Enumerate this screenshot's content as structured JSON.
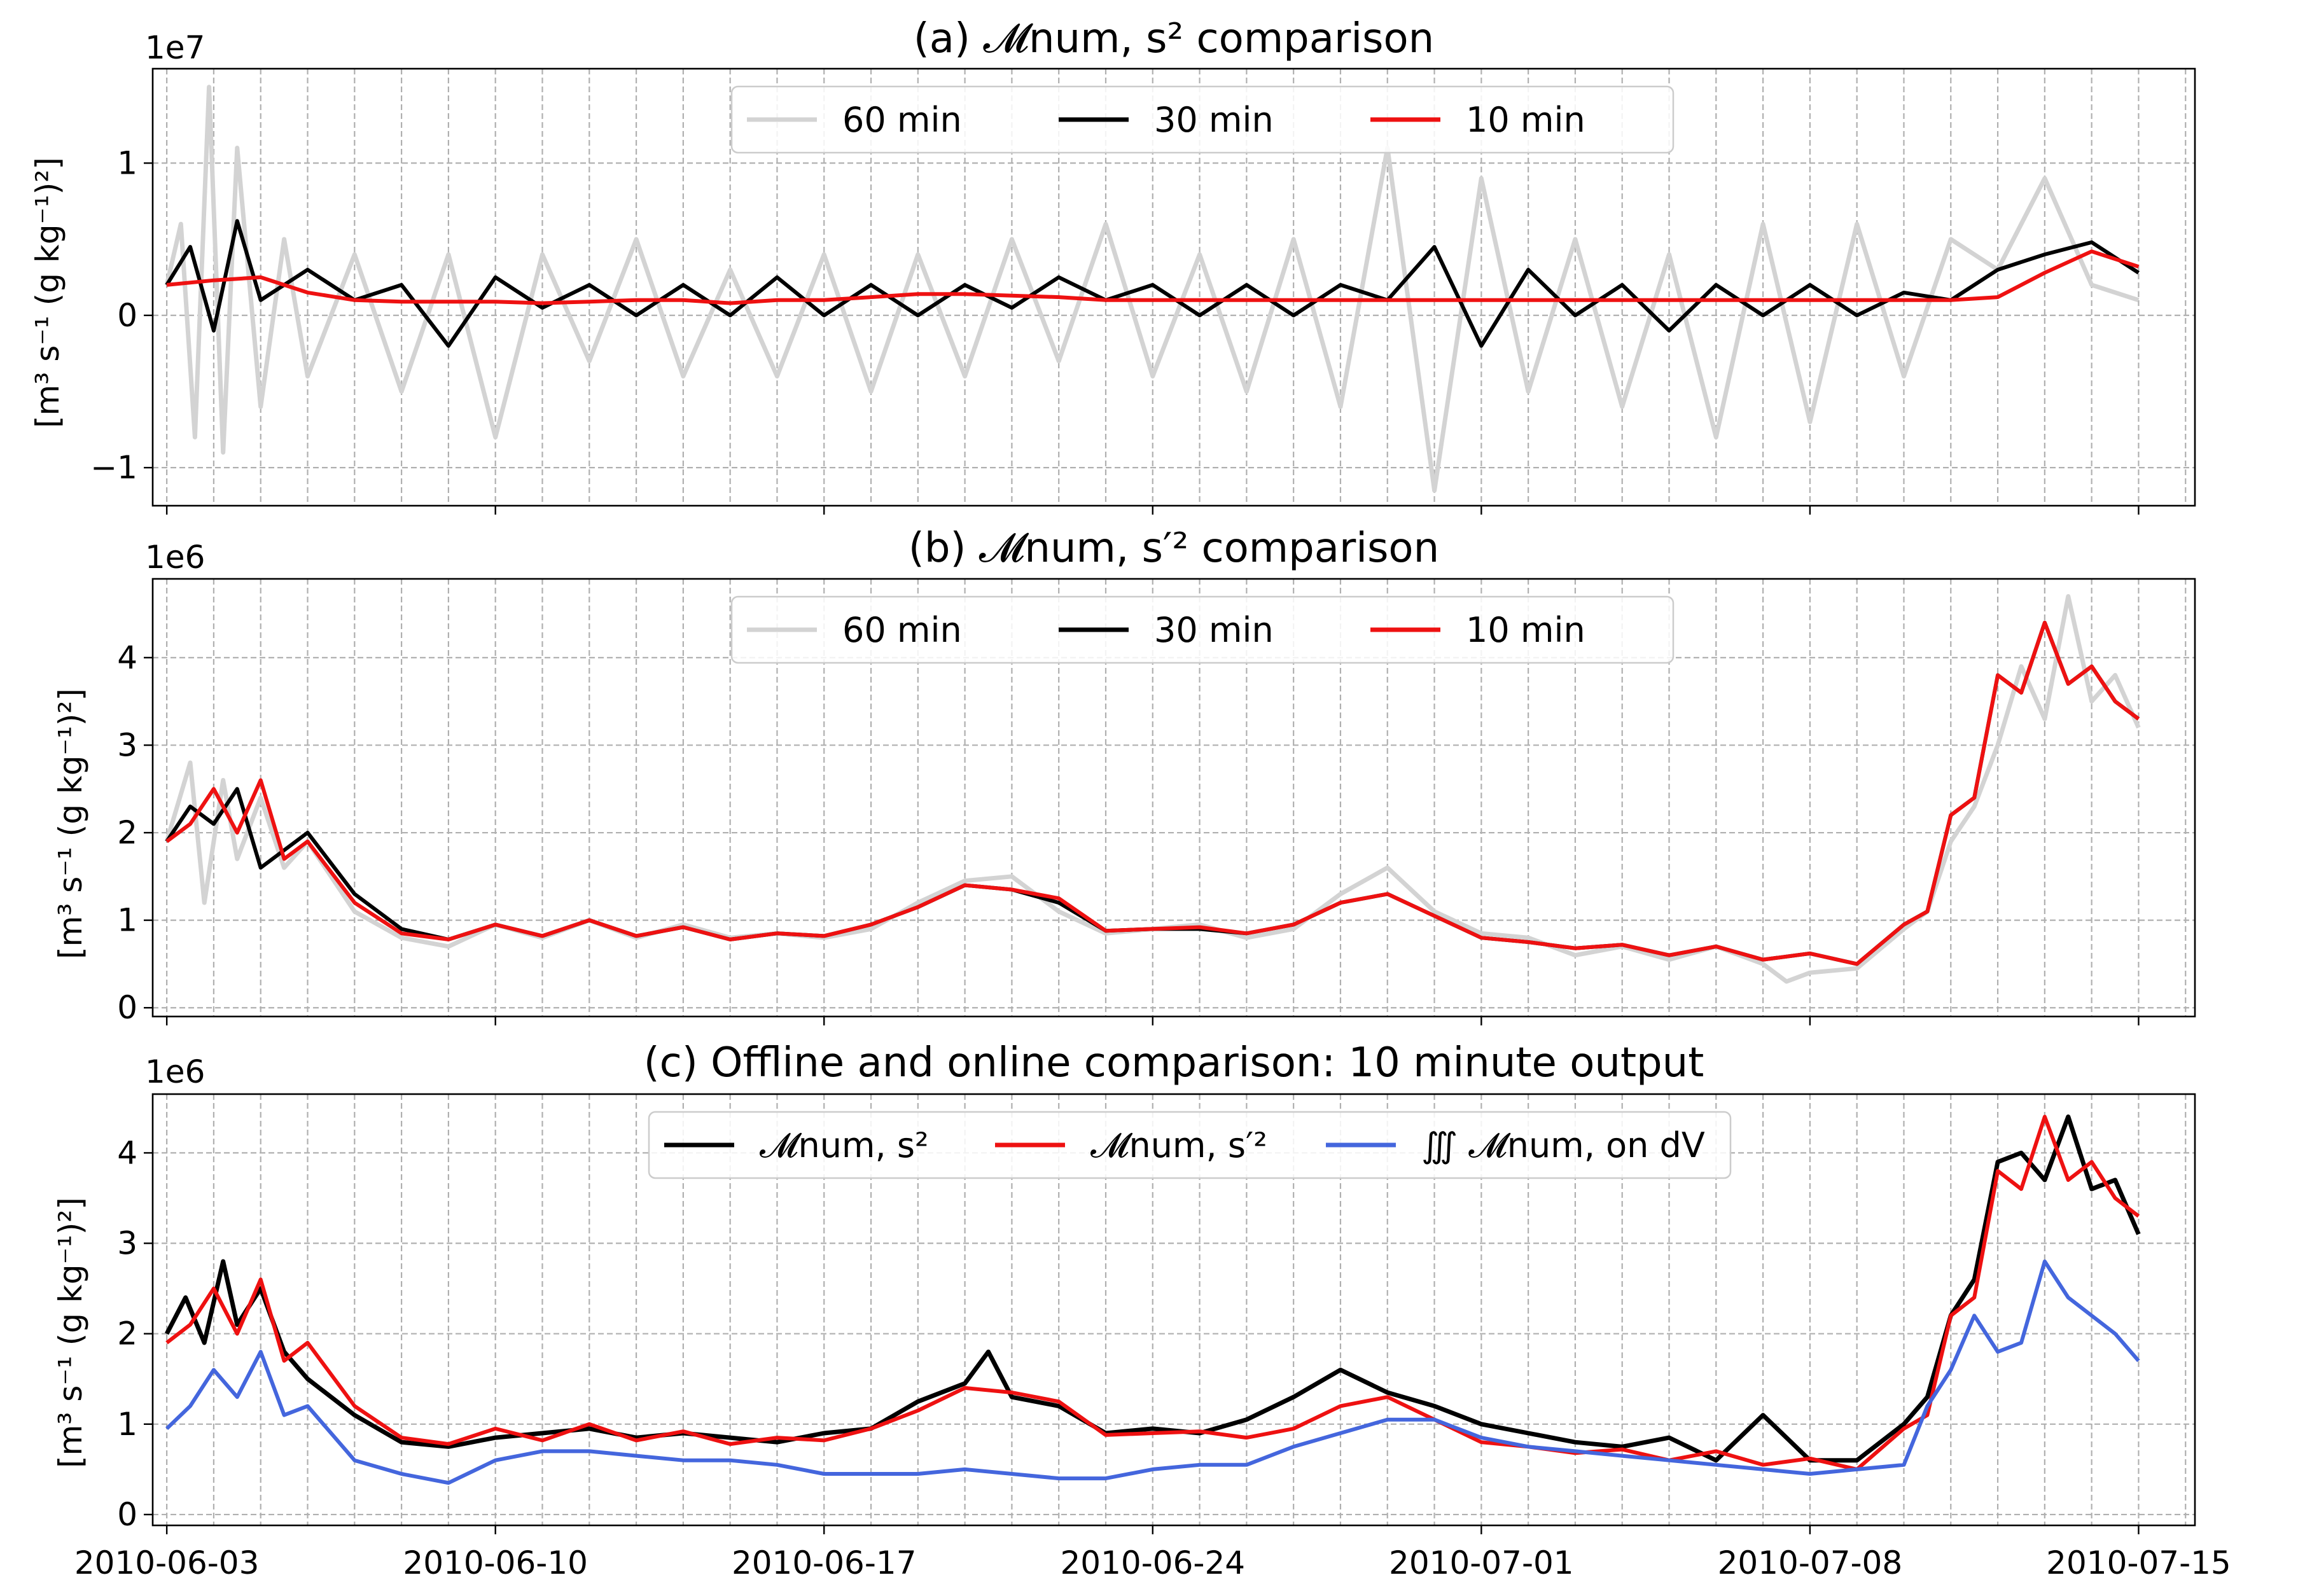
{
  "chart_data": [
    {
      "type": "line",
      "title": "(a) 𝓜num, s² comparison",
      "ylabel": "[m³ s⁻¹ (g kg⁻¹)²]",
      "offset_text": "1e7",
      "ylim": [
        -1.25,
        1.62
      ],
      "yticks": [
        -1,
        0,
        1
      ],
      "ytick_labels": [
        "−1",
        "0",
        "1"
      ],
      "grid": true,
      "legend": "top-center",
      "series": [
        {
          "name": "60 min",
          "color": "#d3d3d3",
          "x": [
            0,
            0.3,
            0.6,
            0.9,
            1.2,
            1.5,
            2,
            2.5,
            3,
            4,
            5,
            6,
            7,
            8,
            9,
            10,
            11,
            12,
            13,
            14,
            15,
            16,
            17,
            18,
            19,
            20,
            21,
            22,
            23,
            24,
            25,
            26,
            27,
            28,
            29,
            30,
            31,
            32,
            33,
            34,
            35,
            36,
            37,
            38,
            39,
            40,
            41,
            42
          ],
          "y": [
            0.2,
            0.6,
            -0.8,
            1.5,
            -0.9,
            1.1,
            -0.6,
            0.5,
            -0.4,
            0.4,
            -0.5,
            0.4,
            -0.8,
            0.4,
            -0.3,
            0.5,
            -0.4,
            0.3,
            -0.4,
            0.4,
            -0.5,
            0.4,
            -0.4,
            0.5,
            -0.3,
            0.6,
            -0.4,
            0.4,
            -0.5,
            0.5,
            -0.6,
            1.1,
            -1.15,
            0.9,
            -0.5,
            0.5,
            -0.6,
            0.4,
            -0.8,
            0.6,
            -0.7,
            0.6,
            -0.4,
            0.5,
            0.3,
            0.9,
            0.2,
            0.1
          ]
        },
        {
          "name": "30 min",
          "color": "#000000",
          "x": [
            0,
            0.5,
            1,
            1.5,
            2,
            3,
            4,
            5,
            6,
            7,
            8,
            9,
            10,
            11,
            12,
            13,
            14,
            15,
            16,
            17,
            18,
            19,
            20,
            21,
            22,
            23,
            24,
            25,
            26,
            27,
            28,
            29,
            30,
            31,
            32,
            33,
            34,
            35,
            36,
            37,
            38,
            39,
            40,
            41,
            42
          ],
          "y": [
            0.2,
            0.45,
            -0.1,
            0.62,
            0.1,
            0.3,
            0.1,
            0.2,
            -0.2,
            0.25,
            0.05,
            0.2,
            0.0,
            0.2,
            0.0,
            0.25,
            0.0,
            0.2,
            0.0,
            0.2,
            0.05,
            0.25,
            0.1,
            0.2,
            0.0,
            0.2,
            0.0,
            0.2,
            0.1,
            0.45,
            -0.2,
            0.3,
            0.0,
            0.2,
            -0.1,
            0.2,
            0.0,
            0.2,
            0.0,
            0.15,
            0.1,
            0.3,
            0.4,
            0.48,
            0.28
          ]
        },
        {
          "name": "10 min",
          "color": "#ee1111",
          "x": [
            0,
            1,
            2,
            3,
            4,
            5,
            6,
            7,
            8,
            9,
            10,
            11,
            12,
            13,
            14,
            15,
            16,
            17,
            18,
            19,
            20,
            21,
            22,
            23,
            24,
            25,
            26,
            27,
            28,
            29,
            30,
            31,
            32,
            33,
            34,
            35,
            36,
            37,
            38,
            39,
            40,
            41,
            42
          ],
          "y": [
            0.2,
            0.23,
            0.25,
            0.15,
            0.1,
            0.09,
            0.09,
            0.09,
            0.08,
            0.09,
            0.1,
            0.1,
            0.08,
            0.1,
            0.1,
            0.12,
            0.14,
            0.14,
            0.13,
            0.12,
            0.1,
            0.1,
            0.1,
            0.1,
            0.1,
            0.1,
            0.1,
            0.1,
            0.1,
            0.1,
            0.1,
            0.1,
            0.1,
            0.1,
            0.1,
            0.1,
            0.1,
            0.1,
            0.1,
            0.12,
            0.28,
            0.42,
            0.32
          ]
        }
      ]
    },
    {
      "type": "line",
      "title": "(b) 𝓜num, s′² comparison",
      "ylabel": "[m³ s⁻¹ (g kg⁻¹)²]",
      "offset_text": "1e6",
      "ylim": [
        -0.1,
        4.9
      ],
      "yticks": [
        0,
        1,
        2,
        3,
        4
      ],
      "ytick_labels": [
        "0",
        "1",
        "2",
        "3",
        "4"
      ],
      "grid": true,
      "legend": "top-center",
      "series": [
        {
          "name": "60 min",
          "color": "#d3d3d3",
          "x": [
            0,
            0.5,
            0.8,
            1.2,
            1.5,
            2,
            2.5,
            3,
            4,
            5,
            6,
            7,
            8,
            9,
            10,
            11,
            12,
            13,
            14,
            15,
            16,
            17,
            18,
            19,
            20,
            21,
            22,
            23,
            24,
            25,
            26,
            27,
            28,
            29,
            30,
            31,
            32,
            33,
            34,
            34.5,
            35,
            36,
            37,
            37.5,
            38,
            38.5,
            39,
            39.5,
            40,
            40.5,
            41,
            41.5,
            42
          ],
          "y": [
            1.9,
            2.8,
            1.2,
            2.6,
            1.7,
            2.4,
            1.6,
            1.9,
            1.1,
            0.8,
            0.7,
            0.95,
            0.8,
            1.0,
            0.8,
            0.95,
            0.8,
            0.85,
            0.8,
            0.9,
            1.2,
            1.45,
            1.5,
            1.1,
            0.85,
            0.9,
            0.95,
            0.8,
            0.9,
            1.3,
            1.6,
            1.1,
            0.85,
            0.8,
            0.6,
            0.7,
            0.55,
            0.7,
            0.5,
            0.3,
            0.4,
            0.45,
            0.9,
            1.1,
            1.9,
            2.3,
            3.0,
            3.9,
            3.3,
            4.7,
            3.5,
            3.8,
            3.2
          ]
        },
        {
          "name": "30 min",
          "color": "#000000",
          "x": [
            0,
            0.5,
            1,
            1.5,
            2,
            3,
            4,
            5,
            6,
            7,
            8,
            9,
            10,
            11,
            12,
            13,
            14,
            15,
            16,
            17,
            18,
            19,
            20,
            21,
            22,
            23,
            24,
            25,
            26,
            27,
            28,
            29,
            30,
            31,
            32,
            33,
            34,
            35,
            36,
            37,
            37.5,
            38,
            38.5,
            39,
            39.5,
            40,
            40.5,
            41,
            41.5,
            42
          ],
          "y": [
            1.9,
            2.3,
            2.1,
            2.5,
            1.6,
            2.0,
            1.3,
            0.9,
            0.78,
            0.95,
            0.82,
            1.0,
            0.82,
            0.92,
            0.78,
            0.85,
            0.82,
            0.95,
            1.15,
            1.4,
            1.35,
            1.2,
            0.88,
            0.9,
            0.9,
            0.85,
            0.95,
            1.2,
            1.3,
            1.05,
            0.8,
            0.75,
            0.68,
            0.72,
            0.6,
            0.7,
            0.55,
            0.62,
            0.5,
            0.95,
            1.1,
            2.2,
            2.4,
            3.8,
            3.6,
            4.4,
            3.7,
            3.9,
            3.5,
            3.3
          ]
        },
        {
          "name": "10 min",
          "color": "#ee1111",
          "x": [
            0,
            0.5,
            1,
            1.5,
            2,
            2.5,
            3,
            4,
            5,
            6,
            7,
            8,
            9,
            10,
            11,
            12,
            13,
            14,
            15,
            16,
            17,
            18,
            19,
            20,
            21,
            22,
            23,
            24,
            25,
            26,
            27,
            28,
            29,
            30,
            31,
            32,
            33,
            34,
            35,
            36,
            37,
            37.5,
            38,
            38.5,
            39,
            39.5,
            40,
            40.5,
            41,
            41.5,
            42
          ],
          "y": [
            1.9,
            2.1,
            2.5,
            2.0,
            2.6,
            1.7,
            1.9,
            1.2,
            0.85,
            0.78,
            0.95,
            0.82,
            1.0,
            0.82,
            0.92,
            0.78,
            0.85,
            0.82,
            0.95,
            1.15,
            1.4,
            1.35,
            1.25,
            0.88,
            0.9,
            0.92,
            0.85,
            0.95,
            1.2,
            1.3,
            1.05,
            0.8,
            0.75,
            0.68,
            0.72,
            0.6,
            0.7,
            0.55,
            0.62,
            0.5,
            0.95,
            1.1,
            2.2,
            2.4,
            3.8,
            3.6,
            4.4,
            3.7,
            3.9,
            3.5,
            3.3
          ]
        }
      ]
    },
    {
      "type": "line",
      "title": "(c) Offline and online comparison: 10 minute output",
      "ylabel": "[m³ s⁻¹ (g kg⁻¹)²]",
      "offset_text": "1e6",
      "ylim": [
        -0.12,
        4.65
      ],
      "yticks": [
        0,
        1,
        2,
        3,
        4
      ],
      "ytick_labels": [
        "0",
        "1",
        "2",
        "3",
        "4"
      ],
      "grid": true,
      "legend": "top-center",
      "xlim": [
        -0.3,
        43.2
      ],
      "xticks": [
        0,
        7,
        14,
        21,
        28,
        35,
        42
      ],
      "xtick_labels": [
        "2010-06-03",
        "2010-06-10",
        "2010-06-17",
        "2010-06-24",
        "2010-07-01",
        "2010-07-08",
        "2010-07-15"
      ],
      "series": [
        {
          "name": "𝓜num, s²",
          "color": "#000000",
          "x": [
            0,
            0.4,
            0.8,
            1.2,
            1.5,
            2,
            2.5,
            3,
            4,
            5,
            6,
            7,
            8,
            9,
            10,
            11,
            12,
            13,
            14,
            15,
            16,
            17,
            17.5,
            18,
            19,
            20,
            21,
            22,
            23,
            24,
            25,
            26,
            27,
            28,
            29,
            30,
            31,
            32,
            33,
            34,
            35,
            36,
            37,
            37.5,
            38,
            38.5,
            39,
            39.5,
            40,
            40.5,
            41,
            41.5,
            42
          ],
          "y": [
            2.0,
            2.4,
            1.9,
            2.8,
            2.1,
            2.5,
            1.8,
            1.5,
            1.1,
            0.8,
            0.75,
            0.85,
            0.9,
            0.95,
            0.85,
            0.9,
            0.85,
            0.8,
            0.9,
            0.95,
            1.25,
            1.45,
            1.8,
            1.3,
            1.2,
            0.9,
            0.95,
            0.9,
            1.05,
            1.3,
            1.6,
            1.35,
            1.2,
            1.0,
            0.9,
            0.8,
            0.75,
            0.85,
            0.6,
            1.1,
            0.6,
            0.6,
            1.0,
            1.3,
            2.2,
            2.6,
            3.9,
            4.0,
            3.7,
            4.4,
            3.6,
            3.7,
            3.1
          ]
        },
        {
          "name": "𝓜num, s′²",
          "color": "#ee1111",
          "x": [
            0,
            0.5,
            1,
            1.5,
            2,
            2.5,
            3,
            4,
            5,
            6,
            7,
            8,
            9,
            10,
            11,
            12,
            13,
            14,
            15,
            16,
            17,
            18,
            19,
            20,
            21,
            22,
            23,
            24,
            25,
            26,
            27,
            28,
            29,
            30,
            31,
            32,
            33,
            34,
            35,
            36,
            37,
            37.5,
            38,
            38.5,
            39,
            39.5,
            40,
            40.5,
            41,
            41.5,
            42
          ],
          "y": [
            1.9,
            2.1,
            2.5,
            2.0,
            2.6,
            1.7,
            1.9,
            1.2,
            0.85,
            0.78,
            0.95,
            0.82,
            1.0,
            0.82,
            0.92,
            0.78,
            0.85,
            0.82,
            0.95,
            1.15,
            1.4,
            1.35,
            1.25,
            0.88,
            0.9,
            0.92,
            0.85,
            0.95,
            1.2,
            1.3,
            1.05,
            0.8,
            0.75,
            0.68,
            0.72,
            0.6,
            0.7,
            0.55,
            0.62,
            0.5,
            0.95,
            1.1,
            2.2,
            2.4,
            3.8,
            3.6,
            4.4,
            3.7,
            3.9,
            3.5,
            3.3
          ]
        },
        {
          "name": "∭ 𝓜num, on dV",
          "color": "#4466dd",
          "x": [
            0,
            0.5,
            1,
            1.5,
            2,
            2.5,
            3,
            4,
            5,
            6,
            7,
            8,
            9,
            10,
            11,
            12,
            13,
            14,
            15,
            16,
            17,
            18,
            19,
            20,
            21,
            22,
            23,
            24,
            25,
            26,
            27,
            28,
            29,
            30,
            31,
            32,
            33,
            34,
            35,
            36,
            37,
            37.5,
            38,
            38.5,
            39,
            39.5,
            40,
            40.5,
            41,
            41.5,
            42
          ],
          "y": [
            0.95,
            1.2,
            1.6,
            1.3,
            1.8,
            1.1,
            1.2,
            0.6,
            0.45,
            0.35,
            0.6,
            0.7,
            0.7,
            0.65,
            0.6,
            0.6,
            0.55,
            0.45,
            0.45,
            0.45,
            0.5,
            0.45,
            0.4,
            0.4,
            0.5,
            0.55,
            0.55,
            0.75,
            0.9,
            1.05,
            1.05,
            0.85,
            0.75,
            0.7,
            0.65,
            0.6,
            0.55,
            0.5,
            0.45,
            0.5,
            0.55,
            1.2,
            1.6,
            2.2,
            1.8,
            1.9,
            2.8,
            2.4,
            2.2,
            2.0,
            1.7
          ]
        }
      ]
    }
  ]
}
